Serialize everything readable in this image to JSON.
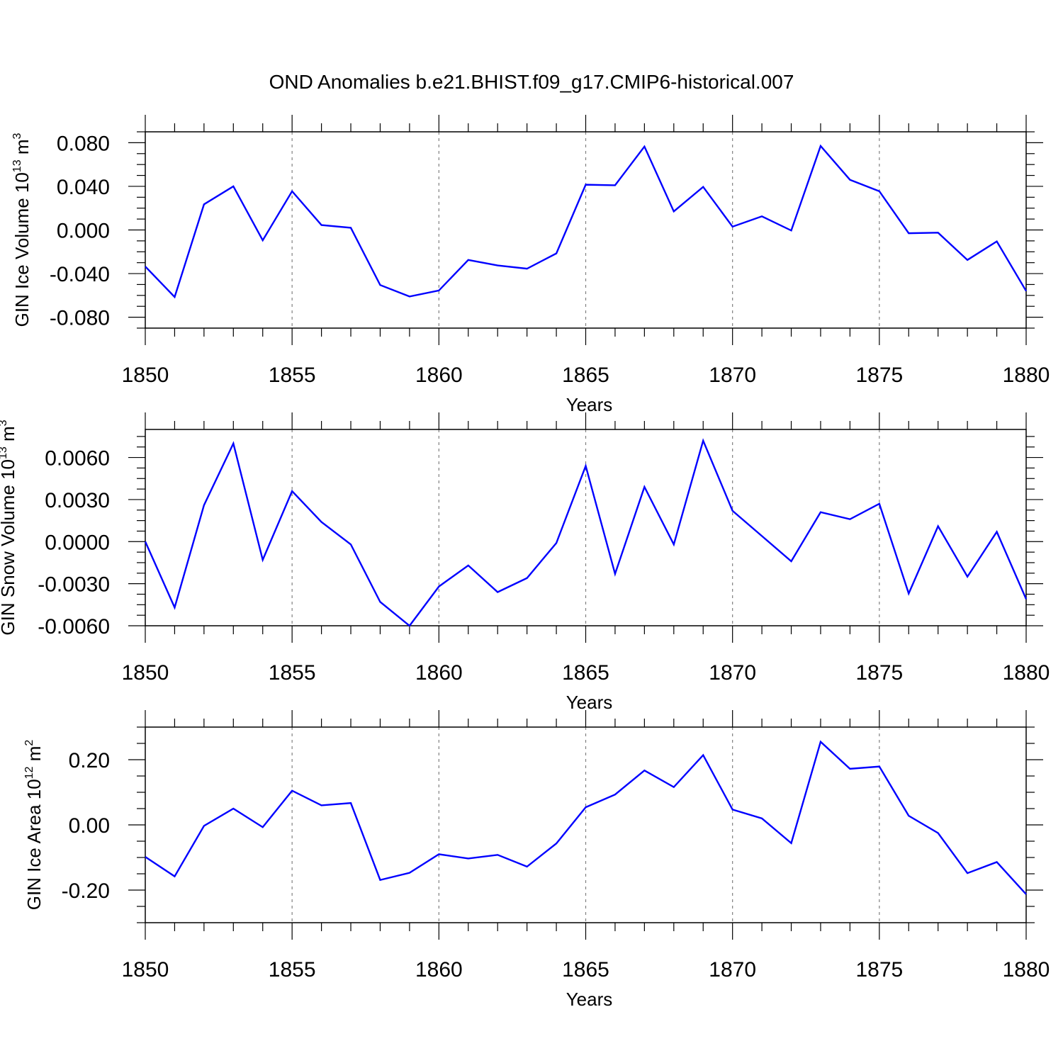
{
  "figure_title": "OND Anomalies b.e21.BHIST.f09_g17.CMIP6-historical.007",
  "colors": {
    "line": "#0000ff",
    "axis": "#000000",
    "grid": "#808080"
  },
  "chart_data": [
    {
      "type": "line",
      "name": "ice-volume",
      "xlabel": "Years",
      "ylabel": {
        "prefix": "GIN Ice Volume 10",
        "exp": "13",
        "unit": " m",
        "unit_exp": "3"
      },
      "xlim": [
        1850,
        1880
      ],
      "ylim": [
        -0.09,
        0.09
      ],
      "xticks": [
        1850,
        1855,
        1860,
        1865,
        1870,
        1875,
        1880
      ],
      "yticks": [
        -0.08,
        -0.04,
        0.0,
        0.04,
        0.08
      ],
      "ytick_labels": [
        "-0.080",
        "-0.040",
        "0.000",
        "0.040",
        "0.080"
      ],
      "x": [
        1850,
        1851,
        1852,
        1853,
        1854,
        1855,
        1856,
        1857,
        1858,
        1859,
        1860,
        1861,
        1862,
        1863,
        1864,
        1865,
        1866,
        1867,
        1868,
        1869,
        1870,
        1871,
        1872,
        1873,
        1874,
        1875,
        1876,
        1877,
        1878,
        1879,
        1880
      ],
      "values": [
        -0.0335,
        -0.0615,
        0.0235,
        0.04,
        -0.0095,
        0.0355,
        0.0045,
        0.002,
        -0.0505,
        -0.061,
        -0.0555,
        -0.0275,
        -0.0325,
        -0.0355,
        -0.0215,
        0.0415,
        0.041,
        0.0765,
        0.017,
        0.0395,
        0.003,
        0.0125,
        -0.0005,
        0.077,
        0.046,
        0.0355,
        -0.003,
        -0.0025,
        -0.0275,
        -0.0105,
        -0.056
      ]
    },
    {
      "type": "line",
      "name": "snow-volume",
      "xlabel": "Years",
      "ylabel": {
        "prefix": "GIN Snow Volume 10",
        "exp": "13",
        "unit": " m",
        "unit_exp": "3"
      },
      "xlim": [
        1850,
        1880
      ],
      "ylim": [
        -0.006,
        0.008
      ],
      "xticks": [
        1850,
        1855,
        1860,
        1865,
        1870,
        1875,
        1880
      ],
      "yticks": [
        -0.006,
        -0.003,
        0.0,
        0.003,
        0.006
      ],
      "ytick_labels": [
        "-0.0060",
        "-0.0030",
        "0.0000",
        "0.0030",
        "0.0060"
      ],
      "x": [
        1850,
        1851,
        1852,
        1853,
        1854,
        1855,
        1856,
        1857,
        1858,
        1859,
        1860,
        1861,
        1862,
        1863,
        1864,
        1865,
        1866,
        1867,
        1868,
        1869,
        1870,
        1871,
        1872,
        1873,
        1874,
        1875,
        1876,
        1877,
        1878,
        1879,
        1880
      ],
      "values": [
        -0.0,
        -0.0047,
        0.0026,
        0.007,
        -0.0013,
        0.0036,
        0.0014,
        -0.0002,
        -0.0043,
        -0.006,
        -0.0032,
        -0.0017,
        -0.0036,
        -0.0026,
        -0.0001,
        0.0054,
        -0.0023,
        0.0039,
        -0.0002,
        0.0072,
        0.0022,
        0.0004,
        -0.0014,
        0.0021,
        0.0016,
        0.0027,
        -0.0037,
        0.0011,
        -0.0025,
        0.0007,
        -0.0041
      ]
    },
    {
      "type": "line",
      "name": "ice-area",
      "xlabel": "Years",
      "ylabel": {
        "prefix": "GIN Ice Area 10",
        "exp": "12",
        "unit": " m",
        "unit_exp": "2"
      },
      "xlim": [
        1850,
        1880
      ],
      "ylim": [
        -0.3,
        0.3
      ],
      "xticks": [
        1850,
        1855,
        1860,
        1865,
        1870,
        1875,
        1880
      ],
      "yticks": [
        -0.2,
        0.0,
        0.2
      ],
      "ytick_labels": [
        "-0.20",
        "0.00",
        "0.20"
      ],
      "x": [
        1850,
        1851,
        1852,
        1853,
        1854,
        1855,
        1856,
        1857,
        1858,
        1859,
        1860,
        1861,
        1862,
        1863,
        1864,
        1865,
        1866,
        1867,
        1868,
        1869,
        1870,
        1871,
        1872,
        1873,
        1874,
        1875,
        1876,
        1877,
        1878,
        1879,
        1880
      ],
      "values": [
        -0.098,
        -0.158,
        -0.003,
        0.05,
        -0.007,
        0.105,
        0.06,
        0.067,
        -0.169,
        -0.147,
        -0.09,
        -0.103,
        -0.092,
        -0.128,
        -0.057,
        0.054,
        0.093,
        0.167,
        0.116,
        0.214,
        0.047,
        0.02,
        -0.056,
        0.255,
        0.172,
        0.179,
        0.028,
        -0.025,
        -0.148,
        -0.114,
        -0.213
      ]
    }
  ]
}
